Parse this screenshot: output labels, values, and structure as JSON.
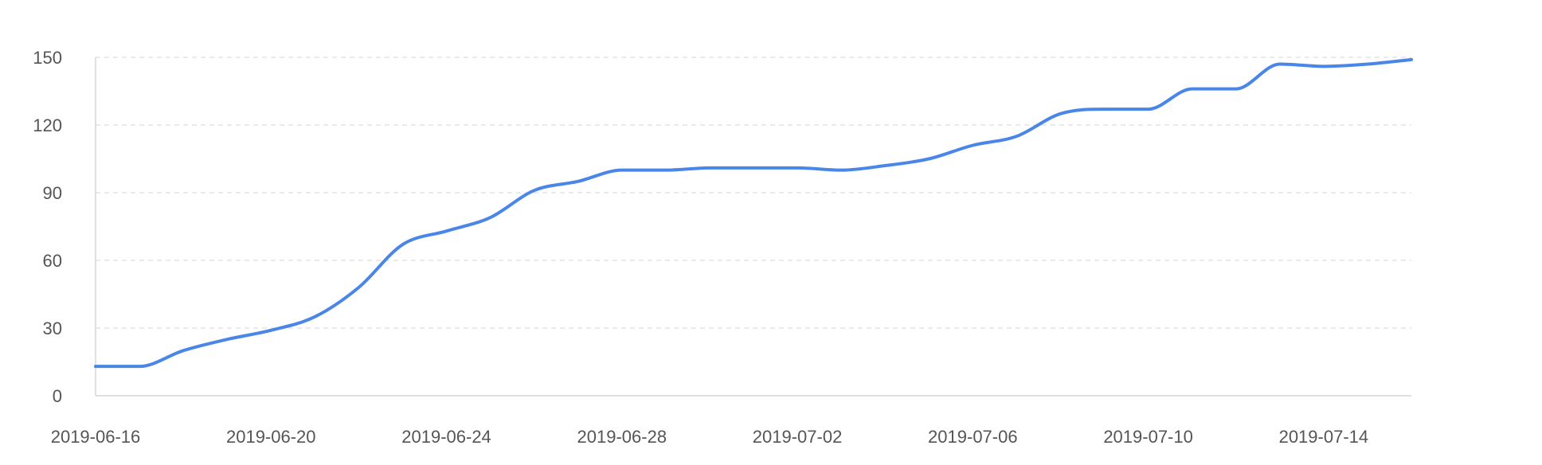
{
  "chart_data": {
    "type": "line",
    "title": "",
    "xlabel": "",
    "ylabel": "",
    "x_tick_labels": [
      "2019-06-16",
      "2019-06-20",
      "2019-06-24",
      "2019-06-28",
      "2019-07-02",
      "2019-07-06",
      "2019-07-10",
      "2019-07-14"
    ],
    "y_tick_labels": [
      "0",
      "30",
      "60",
      "90",
      "120",
      "150"
    ],
    "ylim": [
      0,
      150
    ],
    "xlim": [
      "2019-06-16",
      "2019-07-16"
    ],
    "grid": {
      "horizontal": true,
      "style": "dashed"
    },
    "colors": {
      "line": "#4a86e8",
      "grid": "#dddddd",
      "axis": "#cccccc"
    },
    "series": [
      {
        "x": [
          "2019-06-16",
          "2019-06-17",
          "2019-06-18",
          "2019-06-19",
          "2019-06-20",
          "2019-06-21",
          "2019-06-22",
          "2019-06-23",
          "2019-06-24",
          "2019-06-25",
          "2019-06-26",
          "2019-06-27",
          "2019-06-28",
          "2019-06-29",
          "2019-06-30",
          "2019-07-01",
          "2019-07-02",
          "2019-07-03",
          "2019-07-04",
          "2019-07-05",
          "2019-07-06",
          "2019-07-07",
          "2019-07-08",
          "2019-07-09",
          "2019-07-10",
          "2019-07-11",
          "2019-07-12",
          "2019-07-13",
          "2019-07-14",
          "2019-07-15",
          "2019-07-16"
        ],
        "y": [
          13,
          13,
          20,
          25,
          29,
          35,
          48,
          67,
          73,
          79,
          91,
          95,
          100,
          100,
          101,
          101,
          101,
          100,
          102,
          105,
          111,
          115,
          125,
          127,
          127,
          136,
          136,
          147,
          146,
          147,
          149
        ]
      }
    ]
  }
}
